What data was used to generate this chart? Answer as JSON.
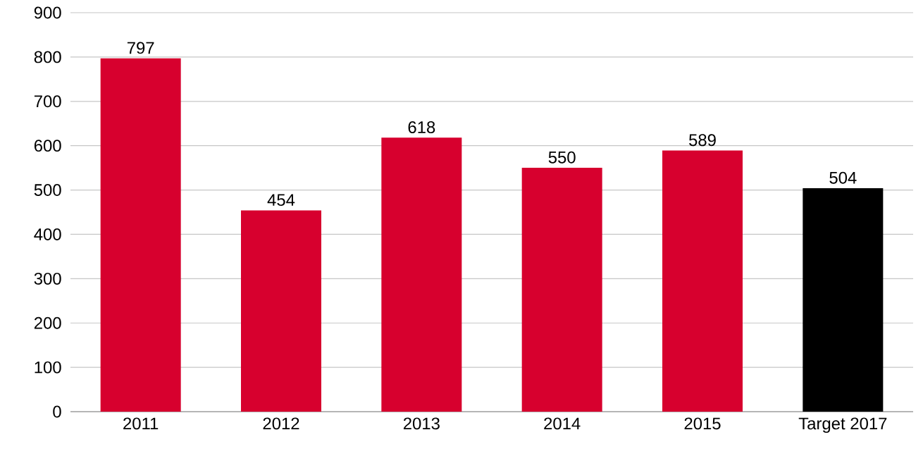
{
  "chart_data": {
    "type": "bar",
    "categories": [
      "2011",
      "2012",
      "2013",
      "2014",
      "2015",
      "Target 2017"
    ],
    "values": [
      797,
      454,
      618,
      550,
      589,
      504
    ],
    "colors": [
      "#d7002e",
      "#d7002e",
      "#d7002e",
      "#d7002e",
      "#d7002e",
      "#000000"
    ],
    "ylim": [
      0,
      900
    ],
    "yticks": [
      0,
      100,
      200,
      300,
      400,
      500,
      600,
      700,
      800,
      900
    ],
    "grid": "y",
    "data_labels": true
  }
}
